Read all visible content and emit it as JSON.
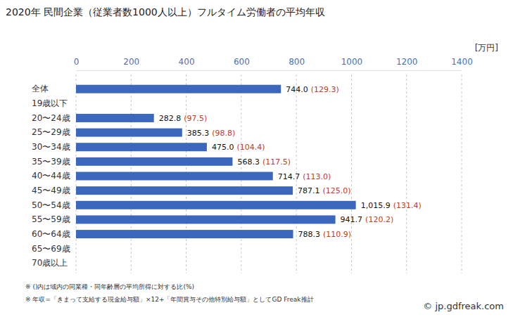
{
  "chart_data": {
    "type": "bar",
    "orientation": "horizontal",
    "title": "2020年 民間企業（従業者数1000人以上）フルタイム労働者の平均年収",
    "xlabel": "[万円]",
    "categories": [
      "全体",
      "19歳以下",
      "20〜24歳",
      "25〜29歳",
      "30〜34歳",
      "35〜39歳",
      "40〜44歳",
      "45〜49歳",
      "50〜54歳",
      "55〜59歳",
      "60〜64歳",
      "65〜69歳",
      "70歳以上"
    ],
    "values": [
      744.0,
      null,
      282.8,
      385.3,
      475.0,
      568.3,
      714.7,
      787.1,
      1015.9,
      941.7,
      788.3,
      null,
      null
    ],
    "value_labels": [
      "744.0",
      null,
      "282.8",
      "385.3",
      "475.0",
      "568.3",
      "714.7",
      "787.1",
      "1,015.9",
      "941.7",
      "788.3",
      null,
      null
    ],
    "ratios": [
      129.3,
      null,
      97.5,
      98.8,
      104.4,
      117.5,
      113.0,
      125.0,
      131.4,
      120.2,
      110.9,
      null,
      null
    ],
    "ratio_labels": [
      "(129.3)",
      null,
      "(97.5)",
      "(98.8)",
      "(104.4)",
      "(117.5)",
      "(113.0)",
      "(125.0)",
      "(131.4)",
      "(120.2)",
      "(110.9)",
      null,
      null
    ],
    "color": "#3b68bd",
    "xlim": [
      0,
      1400
    ],
    "xticks": [
      0,
      200,
      400,
      600,
      800,
      1000,
      1200,
      1400
    ],
    "grid": true,
    "data_labels": true,
    "notes": [
      "※ ()内は域内の同業種・同年齢層の平均所得に対する比(%)",
      "※ 年収=「きまって支給する現金給与額」×12+「年間賞与その他特別給与額」としてGD Freak推計"
    ],
    "source": "© jp.gdfreak.com"
  }
}
